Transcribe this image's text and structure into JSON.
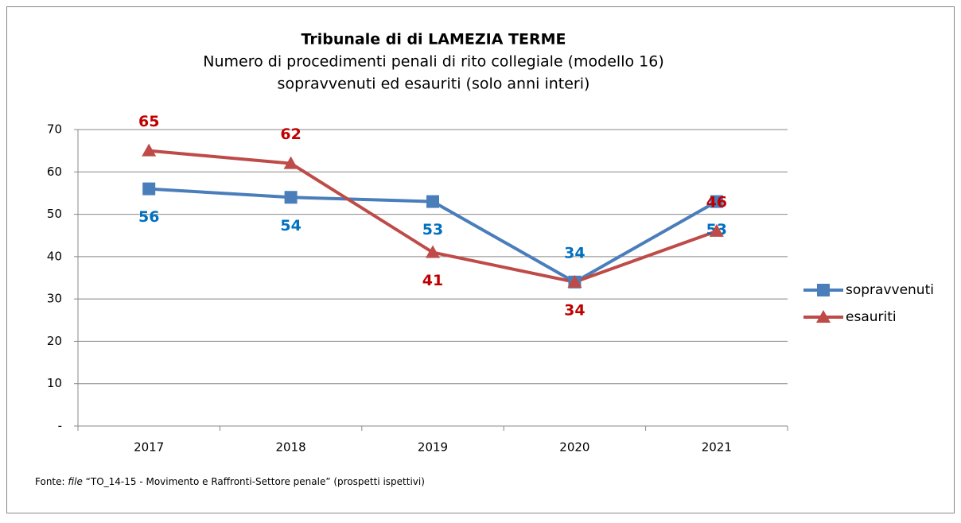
{
  "chart_data": {
    "type": "line",
    "title": "Tribunale di di LAMEZIA TERME",
    "subtitle": [
      "Numero di procedimenti penali di rito collegiale (modello 16)",
      "sopravvenuti ed esauriti (solo anni interi)"
    ],
    "categories": [
      "2017",
      "2018",
      "2019",
      "2020",
      "2021"
    ],
    "series": [
      {
        "name": "sopravvenuti",
        "color": "#4a7ebb",
        "label_color": "#0070c0",
        "marker": "square",
        "values": [
          56,
          54,
          53,
          34,
          53
        ]
      },
      {
        "name": "esauriti",
        "color": "#be4b48",
        "label_color": "#c00000",
        "marker": "triangle",
        "values": [
          65,
          62,
          41,
          34,
          46
        ]
      }
    ],
    "ylim": [
      0,
      70
    ],
    "yticks": [
      {
        "value": 0,
        "label": "-"
      },
      10,
      20,
      30,
      40,
      50,
      60,
      70
    ],
    "grid": true,
    "legend": "right",
    "source": {
      "prefix": "Fonte: ",
      "emphasis": "file",
      "text": " “TO_14-15 - Movimento e Raffronti-Settore penale” (prospetti ispettivi)"
    }
  }
}
